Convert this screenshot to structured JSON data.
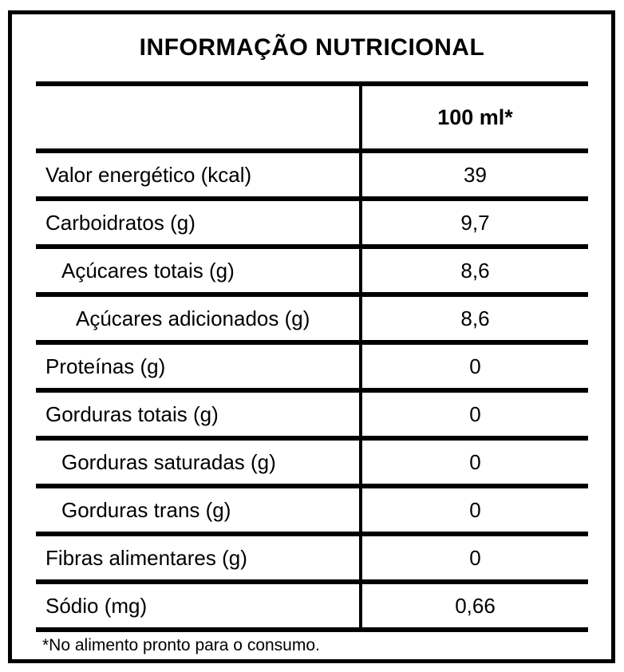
{
  "title": "INFORMAÇÃO NUTRICIONAL",
  "column_header": "100 ml*",
  "rows": [
    {
      "label": "Valor energético (kcal)",
      "value": "39",
      "indent": 0
    },
    {
      "label": "Carboidratos (g)",
      "value": "9,7",
      "indent": 0
    },
    {
      "label": "Açúcares totais (g)",
      "value": "8,6",
      "indent": 1
    },
    {
      "label": "Açúcares adicionados (g)",
      "value": "8,6",
      "indent": 2
    },
    {
      "label": "Proteínas (g)",
      "value": "0",
      "indent": 0
    },
    {
      "label": "Gorduras totais (g)",
      "value": "0",
      "indent": 0
    },
    {
      "label": "Gorduras saturadas (g)",
      "value": "0",
      "indent": 1
    },
    {
      "label": "Gorduras trans (g)",
      "value": "0",
      "indent": 1
    },
    {
      "label": "Fibras alimentares (g)",
      "value": "0",
      "indent": 0
    },
    {
      "label": "Sódio (mg)",
      "value": "0,66",
      "indent": 0
    }
  ],
  "footnote": "*No alimento pronto para o consumo.",
  "colors": {
    "border": "#000000",
    "text": "#000000",
    "background": "#ffffff"
  }
}
